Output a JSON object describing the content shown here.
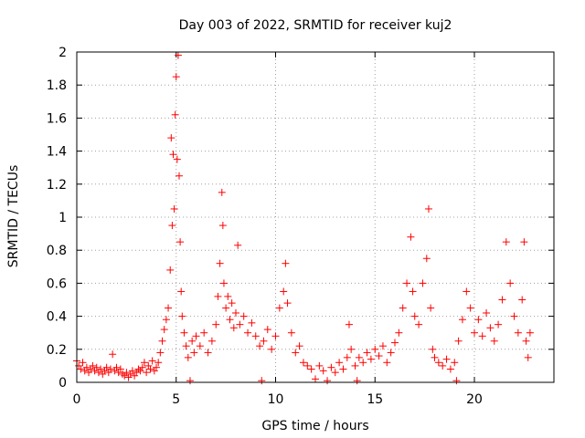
{
  "chart_data": {
    "type": "scatter",
    "title": "Day 003 of 2022, SRMTID for receiver kuj2",
    "xlabel": "GPS time / hours",
    "ylabel": "SRMTID / TECUs",
    "xlim": [
      0,
      24
    ],
    "ylim": [
      0,
      2
    ],
    "xticks": [
      0,
      5,
      10,
      15,
      20
    ],
    "xtick_labels": [
      "0",
      "5",
      "10",
      "15",
      "20"
    ],
    "yticks": [
      0,
      0.2,
      0.4,
      0.6,
      0.8,
      1,
      1.2,
      1.4,
      1.6,
      1.8,
      2
    ],
    "ytick_labels": [
      "0",
      "0.2",
      "0.4",
      "0.6",
      "0.8",
      "1",
      "1.2",
      "1.4",
      "1.6",
      "1.8",
      "2"
    ],
    "grid": true,
    "marker": "+",
    "color": "#ff0000",
    "series": [
      {
        "name": "SRMTID",
        "points": [
          [
            0.0,
            0.13
          ],
          [
            0.1,
            0.1
          ],
          [
            0.2,
            0.08
          ],
          [
            0.3,
            0.12
          ],
          [
            0.4,
            0.07
          ],
          [
            0.5,
            0.09
          ],
          [
            0.6,
            0.06
          ],
          [
            0.7,
            0.08
          ],
          [
            0.8,
            0.1
          ],
          [
            0.9,
            0.07
          ],
          [
            1.0,
            0.09
          ],
          [
            1.1,
            0.06
          ],
          [
            1.2,
            0.08
          ],
          [
            1.3,
            0.05
          ],
          [
            1.4,
            0.07
          ],
          [
            1.5,
            0.09
          ],
          [
            1.6,
            0.06
          ],
          [
            1.7,
            0.08
          ],
          [
            1.8,
            0.17
          ],
          [
            1.9,
            0.07
          ],
          [
            2.0,
            0.09
          ],
          [
            2.1,
            0.06
          ],
          [
            2.2,
            0.08
          ],
          [
            2.3,
            0.05
          ],
          [
            2.4,
            0.04
          ],
          [
            2.5,
            0.06
          ],
          [
            2.6,
            0.03
          ],
          [
            2.7,
            0.05
          ],
          [
            2.8,
            0.07
          ],
          [
            2.9,
            0.04
          ],
          [
            3.0,
            0.06
          ],
          [
            3.1,
            0.08
          ],
          [
            3.2,
            0.07
          ],
          [
            3.3,
            0.09
          ],
          [
            3.4,
            0.12
          ],
          [
            3.5,
            0.06
          ],
          [
            3.6,
            0.1
          ],
          [
            3.7,
            0.08
          ],
          [
            3.8,
            0.13
          ],
          [
            3.9,
            0.07
          ],
          [
            4.0,
            0.09
          ],
          [
            4.1,
            0.12
          ],
          [
            4.2,
            0.18
          ],
          [
            4.3,
            0.25
          ],
          [
            4.4,
            0.32
          ],
          [
            4.5,
            0.38
          ],
          [
            4.6,
            0.45
          ],
          [
            4.7,
            0.68
          ],
          [
            4.75,
            1.48
          ],
          [
            4.8,
            0.95
          ],
          [
            4.85,
            1.38
          ],
          [
            4.9,
            1.05
          ],
          [
            4.95,
            1.62
          ],
          [
            5.0,
            1.85
          ],
          [
            5.05,
            1.35
          ],
          [
            5.1,
            1.98
          ],
          [
            5.15,
            1.25
          ],
          [
            5.2,
            0.85
          ],
          [
            5.25,
            0.55
          ],
          [
            5.3,
            0.4
          ],
          [
            5.4,
            0.3
          ],
          [
            5.5,
            0.22
          ],
          [
            5.6,
            0.15
          ],
          [
            5.7,
            0.01
          ],
          [
            5.8,
            0.25
          ],
          [
            5.9,
            0.18
          ],
          [
            6.0,
            0.28
          ],
          [
            6.2,
            0.22
          ],
          [
            6.4,
            0.3
          ],
          [
            6.6,
            0.18
          ],
          [
            6.8,
            0.25
          ],
          [
            7.0,
            0.35
          ],
          [
            7.1,
            0.52
          ],
          [
            7.2,
            0.72
          ],
          [
            7.3,
            1.15
          ],
          [
            7.35,
            0.95
          ],
          [
            7.4,
            0.6
          ],
          [
            7.5,
            0.45
          ],
          [
            7.6,
            0.52
          ],
          [
            7.7,
            0.38
          ],
          [
            7.8,
            0.48
          ],
          [
            7.9,
            0.33
          ],
          [
            8.0,
            0.42
          ],
          [
            8.1,
            0.83
          ],
          [
            8.2,
            0.35
          ],
          [
            8.4,
            0.4
          ],
          [
            8.6,
            0.3
          ],
          [
            8.8,
            0.36
          ],
          [
            9.0,
            0.28
          ],
          [
            9.2,
            0.22
          ],
          [
            9.3,
            0.01
          ],
          [
            9.4,
            0.25
          ],
          [
            9.6,
            0.32
          ],
          [
            9.8,
            0.2
          ],
          [
            10.0,
            0.28
          ],
          [
            10.2,
            0.45
          ],
          [
            10.4,
            0.55
          ],
          [
            10.5,
            0.72
          ],
          [
            10.6,
            0.48
          ],
          [
            10.8,
            0.3
          ],
          [
            11.0,
            0.18
          ],
          [
            11.2,
            0.22
          ],
          [
            11.4,
            0.12
          ],
          [
            11.6,
            0.1
          ],
          [
            11.8,
            0.08
          ],
          [
            12.0,
            0.02
          ],
          [
            12.2,
            0.1
          ],
          [
            12.4,
            0.07
          ],
          [
            12.6,
            0.01
          ],
          [
            12.8,
            0.09
          ],
          [
            13.0,
            0.06
          ],
          [
            13.2,
            0.12
          ],
          [
            13.4,
            0.08
          ],
          [
            13.6,
            0.15
          ],
          [
            13.7,
            0.35
          ],
          [
            13.8,
            0.2
          ],
          [
            14.0,
            0.1
          ],
          [
            14.1,
            0.01
          ],
          [
            14.2,
            0.15
          ],
          [
            14.4,
            0.12
          ],
          [
            14.6,
            0.18
          ],
          [
            14.8,
            0.14
          ],
          [
            15.0,
            0.2
          ],
          [
            15.2,
            0.16
          ],
          [
            15.4,
            0.22
          ],
          [
            15.6,
            0.12
          ],
          [
            15.8,
            0.18
          ],
          [
            16.0,
            0.24
          ],
          [
            16.2,
            0.3
          ],
          [
            16.4,
            0.45
          ],
          [
            16.6,
            0.6
          ],
          [
            16.8,
            0.88
          ],
          [
            16.9,
            0.55
          ],
          [
            17.0,
            0.4
          ],
          [
            17.2,
            0.35
          ],
          [
            17.4,
            0.6
          ],
          [
            17.6,
            0.75
          ],
          [
            17.7,
            1.05
          ],
          [
            17.8,
            0.45
          ],
          [
            17.9,
            0.2
          ],
          [
            18.0,
            0.15
          ],
          [
            18.2,
            0.12
          ],
          [
            18.4,
            0.1
          ],
          [
            18.6,
            0.14
          ],
          [
            18.8,
            0.08
          ],
          [
            19.0,
            0.12
          ],
          [
            19.1,
            0.01
          ],
          [
            19.2,
            0.25
          ],
          [
            19.4,
            0.38
          ],
          [
            19.6,
            0.55
          ],
          [
            19.8,
            0.45
          ],
          [
            20.0,
            0.3
          ],
          [
            20.2,
            0.38
          ],
          [
            20.4,
            0.28
          ],
          [
            20.6,
            0.42
          ],
          [
            20.8,
            0.33
          ],
          [
            21.0,
            0.25
          ],
          [
            21.2,
            0.35
          ],
          [
            21.4,
            0.5
          ],
          [
            21.6,
            0.85
          ],
          [
            21.8,
            0.6
          ],
          [
            22.0,
            0.4
          ],
          [
            22.2,
            0.3
          ],
          [
            22.4,
            0.5
          ],
          [
            22.5,
            0.85
          ],
          [
            22.6,
            0.25
          ],
          [
            22.7,
            0.15
          ],
          [
            22.8,
            0.3
          ]
        ]
      }
    ]
  }
}
